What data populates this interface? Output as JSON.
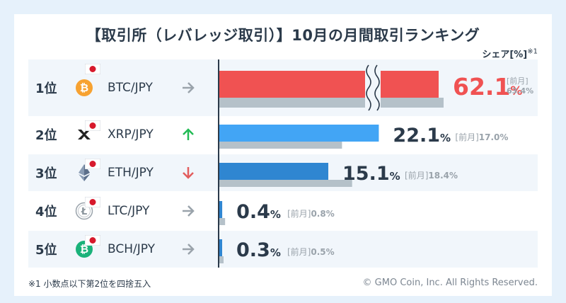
{
  "title": "【取引所（レバレッジ取引）】10月の月間取引ランキング",
  "share_label": "シェア[%]",
  "share_note_mark": "※1",
  "footnote": "※1  小数点以下第2位を四捨五入",
  "copyright": "© GMO Coin, Inc. All Rights Reserved.",
  "prev_label": "[前月]",
  "colors": {
    "background": "#e6f1fb",
    "rank1_bar": "#f05252",
    "blue_bar": "#42a5f5",
    "dark_blue_bar": "#2f86d1",
    "prev_bar": "#b5c1c9",
    "text_dark": "#2b3a4a",
    "up_arrow": "#22bb55",
    "down_arrow": "#e25d5d",
    "flat_arrow": "#9aa3ab"
  },
  "chart_data": {
    "type": "bar",
    "orientation": "horizontal",
    "categories": [
      "BTC/JPY",
      "XRP/JPY",
      "ETH/JPY",
      "LTC/JPY",
      "BCH/JPY"
    ],
    "ranks": [
      "1位",
      "2位",
      "3位",
      "4位",
      "5位"
    ],
    "series": [
      {
        "name": "10月",
        "values": [
          62.1,
          22.1,
          15.1,
          0.4,
          0.3
        ]
      },
      {
        "name": "前月",
        "values": [
          63.4,
          17.0,
          18.4,
          0.8,
          0.5
        ]
      }
    ],
    "value_labels": [
      "62.1",
      "22.1",
      "15.1",
      "0.4",
      "0.3"
    ],
    "prev_labels": [
      "63.4%",
      "17.0%",
      "18.4%",
      "0.8%",
      "0.5%"
    ],
    "unit": "%",
    "trend": [
      "flat",
      "up",
      "down",
      "flat",
      "flat"
    ],
    "icons": [
      "bitcoin-icon",
      "xrp-icon",
      "ethereum-icon",
      "litecoin-icon",
      "bitcoin-cash-icon"
    ],
    "axis_break_on_first_bar": true,
    "grid": false
  }
}
